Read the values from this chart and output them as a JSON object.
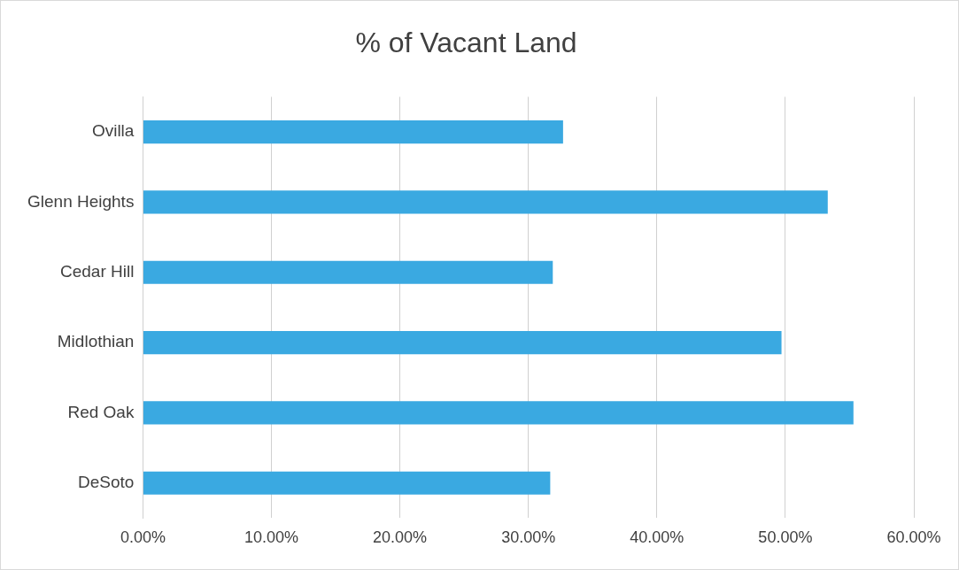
{
  "chart_data": {
    "type": "bar",
    "orientation": "horizontal",
    "title": "% of Vacant Land",
    "categories": [
      "Ovilla",
      "Glenn Heights",
      "Cedar Hill",
      "Midlothian",
      "Red Oak",
      "DeSoto"
    ],
    "values": [
      32.7,
      53.3,
      31.9,
      49.7,
      55.3,
      31.7
    ],
    "color": "#3aa9e1",
    "xlim": [
      0,
      60
    ],
    "xticks": [
      {
        "value": 0,
        "label": "0.00%"
      },
      {
        "value": 10,
        "label": "10.00%"
      },
      {
        "value": 20,
        "label": "20.00%"
      },
      {
        "value": 30,
        "label": "30.00%"
      },
      {
        "value": 40,
        "label": "40.00%"
      },
      {
        "value": 50,
        "label": "50.00%"
      },
      {
        "value": 60,
        "label": "60.00%"
      }
    ],
    "grid": "x"
  }
}
